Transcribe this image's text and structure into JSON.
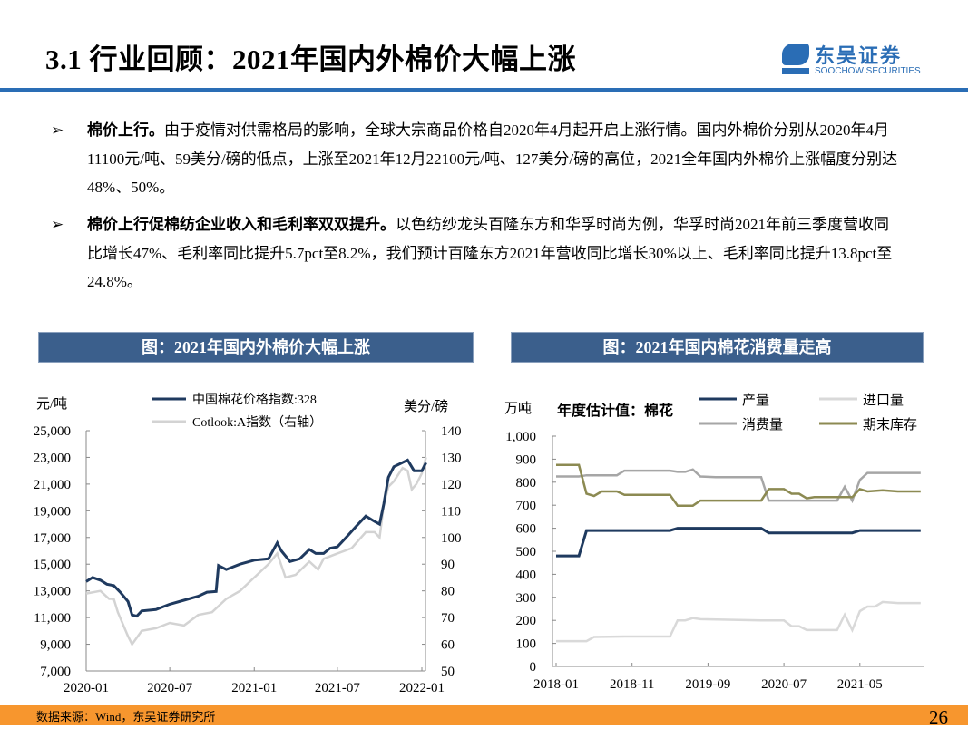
{
  "header": {
    "title": "3.1  行业回顾：2021年国内外棉价大幅上涨",
    "logo_cn": "东吴证券",
    "logo_en": "SOOCHOW SECURITIES",
    "logo_mark": "SCS",
    "brand_color": "#2a6db5"
  },
  "bullets": [
    {
      "lead": "棉价上行。",
      "text": "由于疫情对供需格局的影响，全球大宗商品价格自2020年4月起开启上涨行情。国内外棉价分别从2020年4月11100元/吨、59美分/磅的低点，上涨至2021年12月22100元/吨、127美分/磅的高位，2021全年国内外棉价上涨幅度分别达48%、50%。"
    },
    {
      "lead": "棉价上行促棉纺企业收入和毛利率双双提升。",
      "text": "以色纺纱龙头百隆东方和华孚时尚为例，华孚时尚2021年前三季度营收同比增长47%、毛利率同比提升5.7pct至8.2%，我们预计百隆东方2021年营收同比增长30%以上、毛利率同比提升13.8pct至24.8%。"
    }
  ],
  "bullet_icon": "➢",
  "footer": {
    "source": "数据来源：Wind，东吴证券研究所",
    "page": "26",
    "color": "#f7962e"
  },
  "chart_data": [
    {
      "type": "line",
      "title": "图：2021年国内外棉价大幅上涨",
      "ylabel": "元/吨",
      "y2label": "美分/磅",
      "ylim": [
        7000,
        25000
      ],
      "y2lim": [
        50,
        140
      ],
      "yticks": [
        "7,000",
        "9,000",
        "11,000",
        "13,000",
        "15,000",
        "17,000",
        "19,000",
        "21,000",
        "23,000",
        "25,000"
      ],
      "y2ticks": [
        "50",
        "60",
        "70",
        "80",
        "90",
        "100",
        "110",
        "120",
        "130",
        "140"
      ],
      "xticks": [
        "2020-01",
        "2020-07",
        "2021-01",
        "2021-07",
        "2022-01"
      ],
      "legend": "top",
      "series": [
        {
          "name": "中国棉花价格指数:328",
          "axis": "left",
          "color": "#1f3a5f",
          "points": [
            [
              "2020-01-01",
              13700
            ],
            [
              "2020-01-15",
              14000
            ],
            [
              "2020-02-01",
              13800
            ],
            [
              "2020-02-15",
              13500
            ],
            [
              "2020-03-01",
              13400
            ],
            [
              "2020-03-15",
              12900
            ],
            [
              "2020-04-01",
              12200
            ],
            [
              "2020-04-10",
              11200
            ],
            [
              "2020-04-20",
              11100
            ],
            [
              "2020-05-01",
              11500
            ],
            [
              "2020-06-01",
              11600
            ],
            [
              "2020-07-01",
              12000
            ],
            [
              "2020-08-01",
              12300
            ],
            [
              "2020-09-01",
              12600
            ],
            [
              "2020-09-20",
              12900
            ],
            [
              "2020-10-10",
              12950
            ],
            [
              "2020-10-15",
              14900
            ],
            [
              "2020-11-01",
              14600
            ],
            [
              "2020-12-01",
              15000
            ],
            [
              "2021-01-01",
              15300
            ],
            [
              "2021-02-01",
              15400
            ],
            [
              "2021-02-20",
              16600
            ],
            [
              "2021-03-01",
              16000
            ],
            [
              "2021-03-20",
              15200
            ],
            [
              "2021-04-10",
              15400
            ],
            [
              "2021-05-01",
              16100
            ],
            [
              "2021-05-15",
              15800
            ],
            [
              "2021-06-01",
              15800
            ],
            [
              "2021-06-15",
              16200
            ],
            [
              "2021-07-01",
              16300
            ],
            [
              "2021-07-20",
              17000
            ],
            [
              "2021-08-10",
              17800
            ],
            [
              "2021-09-01",
              18600
            ],
            [
              "2021-09-20",
              18200
            ],
            [
              "2021-10-01",
              18000
            ],
            [
              "2021-10-10",
              19500
            ],
            [
              "2021-10-20",
              21500
            ],
            [
              "2021-11-01",
              22300
            ],
            [
              "2021-12-01",
              22800
            ],
            [
              "2021-12-15",
              22000
            ],
            [
              "2022-01-01",
              22000
            ],
            [
              "2022-01-10",
              22600
            ]
          ]
        },
        {
          "name": "Cotlook:A指数（右轴）",
          "axis": "right",
          "color": "#d3d3d3",
          "points": [
            [
              "2020-01-01",
              79
            ],
            [
              "2020-02-01",
              80
            ],
            [
              "2020-02-20",
              77
            ],
            [
              "2020-03-01",
              77
            ],
            [
              "2020-03-10",
              72
            ],
            [
              "2020-04-01",
              63
            ],
            [
              "2020-04-10",
              60
            ],
            [
              "2020-05-01",
              65
            ],
            [
              "2020-06-01",
              66
            ],
            [
              "2020-07-01",
              68
            ],
            [
              "2020-08-01",
              67
            ],
            [
              "2020-09-01",
              71
            ],
            [
              "2020-10-01",
              72
            ],
            [
              "2020-11-01",
              77
            ],
            [
              "2020-12-01",
              80
            ],
            [
              "2021-01-01",
              85
            ],
            [
              "2021-02-01",
              90
            ],
            [
              "2021-02-20",
              94
            ],
            [
              "2021-03-10",
              85
            ],
            [
              "2021-04-01",
              86
            ],
            [
              "2021-05-01",
              91
            ],
            [
              "2021-05-20",
              88
            ],
            [
              "2021-06-01",
              92
            ],
            [
              "2021-07-01",
              94
            ],
            [
              "2021-08-01",
              96
            ],
            [
              "2021-09-01",
              102
            ],
            [
              "2021-09-20",
              102
            ],
            [
              "2021-10-01",
              100
            ],
            [
              "2021-10-10",
              112
            ],
            [
              "2021-10-20",
              119
            ],
            [
              "2021-11-01",
              121
            ],
            [
              "2021-11-20",
              126
            ],
            [
              "2021-12-01",
              125
            ],
            [
              "2021-12-10",
              118
            ],
            [
              "2021-12-20",
              120
            ],
            [
              "2022-01-01",
              124
            ],
            [
              "2022-01-10",
              130
            ]
          ]
        }
      ]
    },
    {
      "type": "line",
      "title": "图：2021年国内棉花消费量走高",
      "subtitle": "年度估计值：棉花",
      "ylabel": "万吨",
      "ylim": [
        0,
        1000
      ],
      "yticks": [
        "0",
        "100",
        "200",
        "300",
        "400",
        "500",
        "600",
        "700",
        "800",
        "900",
        "1,000"
      ],
      "xticks": [
        "2018-01",
        "2018-11",
        "2019-09",
        "2020-07",
        "2021-05"
      ],
      "legend": "top",
      "series": [
        {
          "name": "产量",
          "color": "#1f3a5f",
          "points": [
            [
              "2018-01",
              480
            ],
            [
              "2018-04",
              480
            ],
            [
              "2018-05",
              590
            ],
            [
              "2019-04",
              590
            ],
            [
              "2019-05",
              600
            ],
            [
              "2020-04",
              600
            ],
            [
              "2020-05",
              580
            ],
            [
              "2021-04",
              580
            ],
            [
              "2021-05",
              590
            ],
            [
              "2022-01",
              590
            ]
          ]
        },
        {
          "name": "进口量",
          "color": "#d9d9d9",
          "points": [
            [
              "2018-01",
              110
            ],
            [
              "2018-05",
              110
            ],
            [
              "2018-06",
              128
            ],
            [
              "2018-10",
              130
            ],
            [
              "2019-04",
              130
            ],
            [
              "2019-05",
              200
            ],
            [
              "2019-06",
              200
            ],
            [
              "2019-07",
              210
            ],
            [
              "2019-08",
              205
            ],
            [
              "2020-04",
              200
            ],
            [
              "2020-07",
              200
            ],
            [
              "2020-08",
              175
            ],
            [
              "2020-09",
              175
            ],
            [
              "2020-10",
              158
            ],
            [
              "2021-02",
              158
            ],
            [
              "2021-03",
              225
            ],
            [
              "2021-04",
              158
            ],
            [
              "2021-05",
              240
            ],
            [
              "2021-06",
              260
            ],
            [
              "2021-07",
              260
            ],
            [
              "2021-08",
              280
            ],
            [
              "2021-10",
              275
            ],
            [
              "2022-01",
              275
            ]
          ]
        },
        {
          "name": "消费量",
          "color": "#a6a6a6",
          "points": [
            [
              "2018-01",
              825
            ],
            [
              "2018-04",
              825
            ],
            [
              "2018-05",
              830
            ],
            [
              "2018-09",
              830
            ],
            [
              "2018-10",
              850
            ],
            [
              "2019-04",
              850
            ],
            [
              "2019-05",
              845
            ],
            [
              "2019-06",
              845
            ],
            [
              "2019-07",
              855
            ],
            [
              "2019-08",
              825
            ],
            [
              "2019-10",
              822
            ],
            [
              "2020-04",
              822
            ],
            [
              "2020-05",
              720
            ],
            [
              "2021-02",
              720
            ],
            [
              "2021-03",
              780
            ],
            [
              "2021-04",
              720
            ],
            [
              "2021-05",
              810
            ],
            [
              "2021-06",
              840
            ],
            [
              "2022-01",
              840
            ]
          ]
        },
        {
          "name": "期末库存",
          "color": "#8c8a52",
          "points": [
            [
              "2018-01",
              875
            ],
            [
              "2018-04",
              875
            ],
            [
              "2018-05",
              750
            ],
            [
              "2018-06",
              740
            ],
            [
              "2018-07",
              760
            ],
            [
              "2018-09",
              760
            ],
            [
              "2018-10",
              745
            ],
            [
              "2019-04",
              745
            ],
            [
              "2019-05",
              698
            ],
            [
              "2019-07",
              698
            ],
            [
              "2019-08",
              720
            ],
            [
              "2020-04",
              720
            ],
            [
              "2020-05",
              770
            ],
            [
              "2020-07",
              770
            ],
            [
              "2020-08",
              750
            ],
            [
              "2020-09",
              750
            ],
            [
              "2020-10",
              730
            ],
            [
              "2020-11",
              735
            ],
            [
              "2021-04",
              735
            ],
            [
              "2021-05",
              770
            ],
            [
              "2021-06",
              760
            ],
            [
              "2021-08",
              765
            ],
            [
              "2021-10",
              760
            ],
            [
              "2022-01",
              760
            ]
          ]
        }
      ]
    }
  ]
}
